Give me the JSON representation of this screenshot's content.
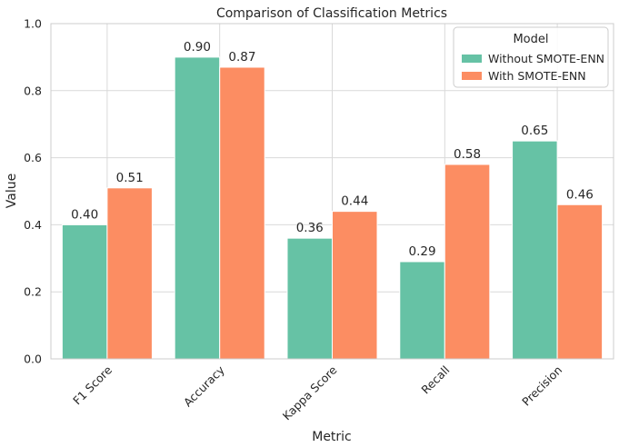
{
  "chart_data": {
    "type": "bar",
    "title": "Comparison of Classification Metrics",
    "xlabel": "Metric",
    "ylabel": "Value",
    "ylim": [
      0,
      1.0
    ],
    "yticks": [
      0.0,
      0.2,
      0.4,
      0.6,
      0.8,
      1.0
    ],
    "ytick_labels": [
      "0.0",
      "0.2",
      "0.4",
      "0.6",
      "0.8",
      "1.0"
    ],
    "grid": true,
    "categories": [
      "F1 Score",
      "Accuracy",
      "Kappa Score",
      "Recall",
      "Precision"
    ],
    "series": [
      {
        "name": "Without SMOTE-ENN",
        "color": "#66c2a5",
        "values": [
          0.4,
          0.9,
          0.36,
          0.29,
          0.65
        ],
        "labels": [
          "0.40",
          "0.90",
          "0.36",
          "0.29",
          "0.65"
        ]
      },
      {
        "name": "With SMOTE-ENN",
        "color": "#fc8d62",
        "values": [
          0.51,
          0.87,
          0.44,
          0.58,
          0.46
        ],
        "labels": [
          "0.51",
          "0.87",
          "0.44",
          "0.58",
          "0.46"
        ]
      }
    ],
    "legend": {
      "title": "Model",
      "placement": "top-right"
    }
  }
}
